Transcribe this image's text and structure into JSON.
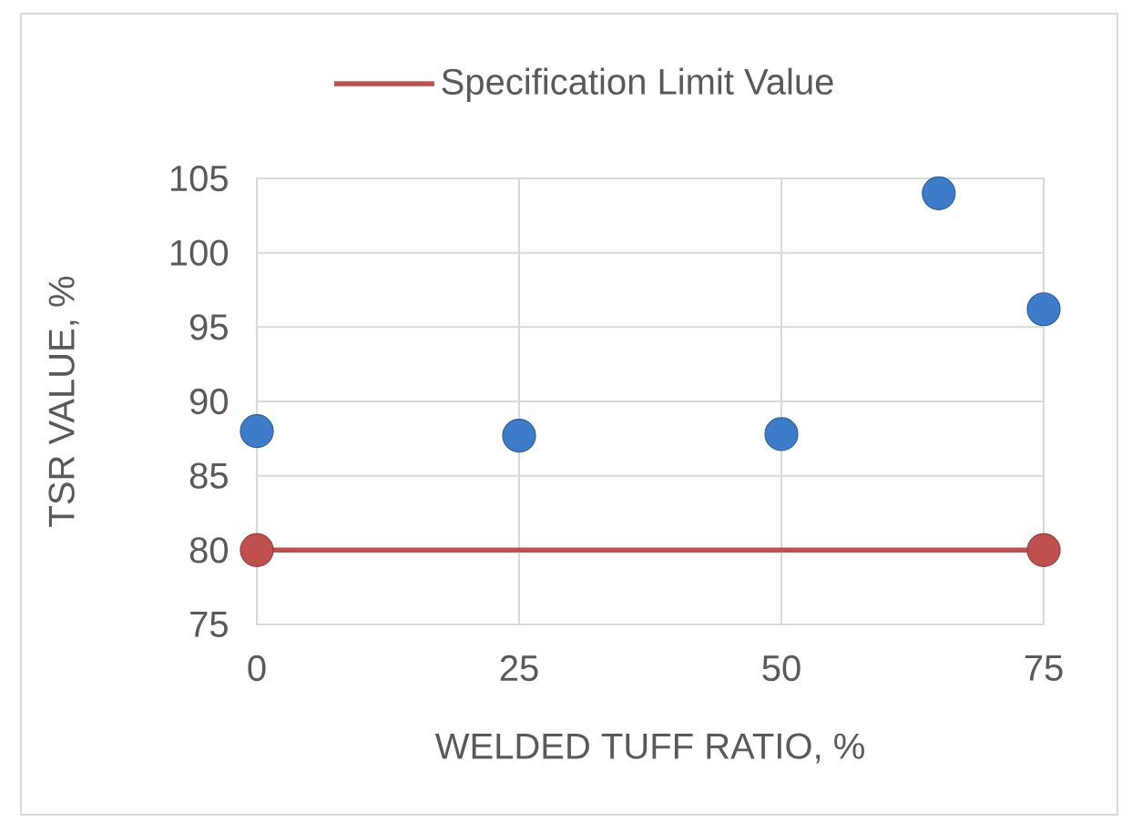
{
  "chart_data": {
    "type": "scatter",
    "xlabel": "WELDED TUFF RATIO, %",
    "ylabel": "TSR VALUE, %",
    "xlim": [
      0,
      75
    ],
    "ylim": [
      75,
      105
    ],
    "xticks": [
      0,
      25,
      50,
      75
    ],
    "yticks": [
      75,
      80,
      85,
      90,
      95,
      100,
      105
    ],
    "grid": true,
    "legend": "top",
    "marker": "circle",
    "series": [
      {
        "color": "#3d7cc9",
        "x": [
          0,
          25,
          50,
          65,
          75
        ],
        "values": [
          88,
          87.7,
          87.8,
          104,
          96.2
        ]
      },
      {
        "name": "Specification Limit Value",
        "type": "line",
        "color": "#c0504d",
        "x": [
          0,
          75
        ],
        "values": [
          80,
          80
        ],
        "line_style": "solid"
      }
    ]
  }
}
